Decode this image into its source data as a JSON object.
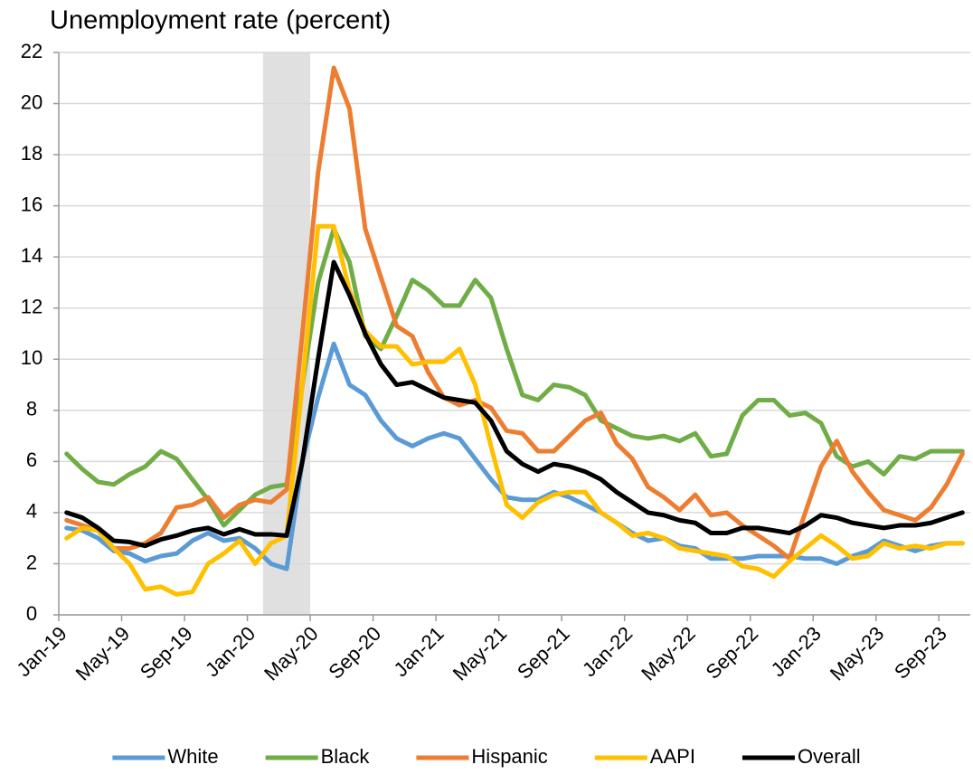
{
  "chart_data": {
    "type": "line",
    "title": "Unemployment rate (percent)",
    "categories": [
      "Jan-19",
      null,
      null,
      null,
      "May-19",
      null,
      null,
      null,
      "Sep-19",
      null,
      null,
      null,
      "Jan-20",
      null,
      null,
      null,
      "May-20",
      null,
      null,
      null,
      "Sep-20",
      null,
      null,
      null,
      "Jan-21",
      null,
      null,
      null,
      "May-21",
      null,
      null,
      null,
      "Sep-21",
      null,
      null,
      null,
      "Jan-22",
      null,
      null,
      null,
      "May-22",
      null,
      null,
      null,
      "Sep-22",
      null,
      null,
      null,
      "Jan-23",
      null,
      null,
      null,
      "May-23",
      null,
      null,
      null,
      "Sep-23",
      null
    ],
    "series": [
      {
        "name": "White",
        "color": "#5b9bd5",
        "values": [
          3.4,
          3.3,
          3.0,
          2.5,
          2.4,
          2.1,
          2.3,
          2.4,
          2.9,
          3.2,
          2.9,
          3.0,
          2.6,
          2.0,
          1.8,
          6.0,
          8.5,
          10.6,
          9.0,
          8.6,
          7.6,
          6.9,
          6.6,
          6.9,
          7.1,
          6.9,
          6.1,
          5.3,
          4.6,
          4.5,
          4.5,
          4.8,
          4.6,
          4.3,
          4.0,
          3.6,
          3.2,
          2.9,
          3.0,
          2.7,
          2.6,
          2.2,
          2.2,
          2.2,
          2.3,
          2.3,
          2.3,
          2.2,
          2.2,
          2.0,
          2.3,
          2.5,
          2.9,
          2.7,
          2.5,
          2.7,
          2.8,
          2.8
        ]
      },
      {
        "name": "Black",
        "color": "#70ad47",
        "values": [
          6.3,
          5.7,
          5.2,
          5.1,
          5.5,
          5.8,
          6.4,
          6.1,
          5.3,
          4.5,
          3.5,
          4.1,
          4.7,
          5.0,
          5.1,
          9.0,
          13.0,
          15.1,
          13.8,
          10.9,
          10.4,
          11.7,
          13.1,
          12.7,
          12.1,
          12.1,
          13.1,
          12.4,
          10.4,
          8.6,
          8.4,
          9.0,
          8.9,
          8.6,
          7.6,
          7.3,
          7.0,
          6.9,
          7.0,
          6.8,
          7.1,
          6.2,
          6.3,
          7.8,
          8.4,
          8.4,
          7.8,
          7.9,
          7.5,
          6.2,
          5.8,
          6.0,
          5.5,
          6.2,
          6.1,
          6.4,
          6.4,
          6.4
        ]
      },
      {
        "name": "Hispanic",
        "color": "#ed7d31",
        "values": [
          3.7,
          3.5,
          3.3,
          2.6,
          2.6,
          2.8,
          3.2,
          4.2,
          4.3,
          4.6,
          3.8,
          4.3,
          4.5,
          4.4,
          4.9,
          11.0,
          17.3,
          21.4,
          19.8,
          15.1,
          13.2,
          11.3,
          10.9,
          9.5,
          8.5,
          8.2,
          8.4,
          8.1,
          7.2,
          7.1,
          6.4,
          6.4,
          7.0,
          7.6,
          7.9,
          6.7,
          6.1,
          5.0,
          4.6,
          4.1,
          4.7,
          3.9,
          4.0,
          3.5,
          3.1,
          2.7,
          2.2,
          4.0,
          5.8,
          6.8,
          5.6,
          4.8,
          4.1,
          3.9,
          3.7,
          4.2,
          5.1,
          6.3
        ]
      },
      {
        "name": "AAPI",
        "color": "#ffc000",
        "values": [
          3.0,
          3.4,
          3.3,
          2.6,
          2.0,
          1.0,
          1.1,
          0.8,
          0.9,
          2.0,
          2.4,
          2.9,
          2.0,
          2.8,
          3.1,
          9.0,
          15.2,
          15.2,
          12.7,
          11.1,
          10.5,
          10.5,
          9.8,
          9.9,
          9.9,
          10.4,
          9.0,
          6.6,
          4.3,
          3.8,
          4.4,
          4.7,
          4.8,
          4.8,
          4.0,
          3.6,
          3.1,
          3.2,
          3.0,
          2.6,
          2.5,
          2.4,
          2.3,
          1.9,
          1.8,
          1.5,
          2.1,
          2.6,
          3.1,
          2.7,
          2.2,
          2.3,
          2.8,
          2.6,
          2.7,
          2.6,
          2.8,
          2.8
        ]
      },
      {
        "name": "Overall",
        "color": "#000000",
        "values": [
          4.0,
          3.8,
          3.4,
          2.9,
          2.85,
          2.7,
          2.95,
          3.1,
          3.3,
          3.4,
          3.15,
          3.35,
          3.15,
          3.15,
          3.1,
          6.0,
          10.0,
          13.8,
          12.5,
          11.0,
          9.8,
          9.0,
          9.1,
          8.8,
          8.5,
          8.4,
          8.3,
          7.6,
          6.4,
          5.9,
          5.6,
          5.9,
          5.8,
          5.6,
          5.3,
          4.8,
          4.4,
          4.0,
          3.9,
          3.7,
          3.6,
          3.2,
          3.2,
          3.4,
          3.4,
          3.3,
          3.2,
          3.5,
          3.9,
          3.8,
          3.6,
          3.5,
          3.4,
          3.5,
          3.5,
          3.6,
          3.8,
          4.0
        ]
      }
    ],
    "shade": {
      "from": 13,
      "to": 16,
      "color": "#e0e0e0"
    },
    "ylim": [
      0,
      22
    ],
    "yticks": [
      0,
      2,
      4,
      6,
      8,
      10,
      12,
      14,
      16,
      18,
      20,
      22
    ],
    "grid": true,
    "legend": "bottom"
  }
}
